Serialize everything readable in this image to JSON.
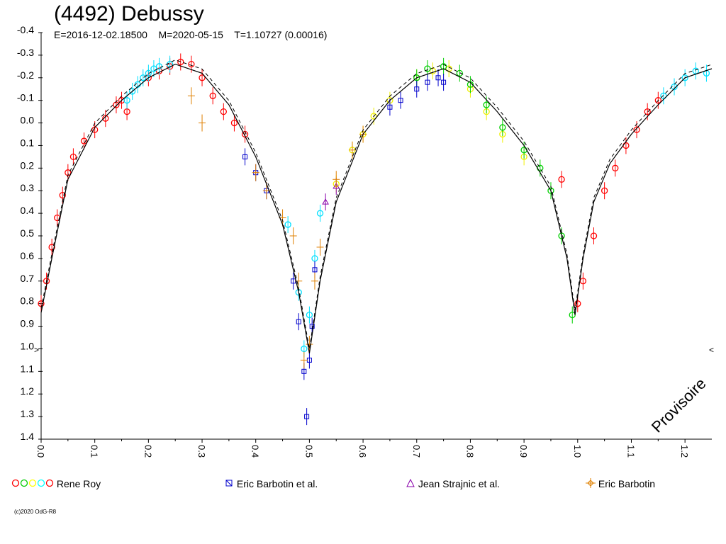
{
  "title": "(4492) Debussy",
  "subtitle": "E=2016-12-02.18500    M=2020-05-15    T=1.10727 (0.00016)",
  "watermark": "Provisoire",
  "copyright": "(c)2020 OdG-R8",
  "edge_markers": {
    "left": ">",
    "right": "<"
  },
  "legend": [
    {
      "label": "Rene Roy",
      "symbol": "multi",
      "colors": [
        "#ff0000",
        "#00cc00",
        "#ffff00",
        "#00ffff",
        "#ff0000"
      ]
    },
    {
      "label": "Eric Barbotin et al.",
      "symbol": "x-square",
      "color": "#0000cc"
    },
    {
      "label": "Jean Strajnic et al.",
      "symbol": "triangle",
      "color": "#8800aa"
    },
    {
      "label": "Eric Barbotin",
      "symbol": "cross-diamond",
      "color": "#e08000"
    }
  ],
  "chart_data": {
    "type": "scatter",
    "x_ticks": [
      "0.0",
      "0.1",
      "0.2",
      "0.3",
      "0.4",
      "0.5",
      "0.6",
      "0.7",
      "0.8",
      "0.9",
      "1.0",
      "1.1",
      "1.2"
    ],
    "y_ticks": [
      "-0.4",
      "-0.3",
      "-0.2",
      "-0.1",
      "0.0",
      "0.1",
      "0.2",
      "0.3",
      "0.4",
      "0.5",
      "0.6",
      "0.7",
      "0.8",
      "0.9",
      "1.0",
      "1.1",
      "1.2",
      "1.3",
      "1.4"
    ],
    "xlim": [
      0.0,
      1.25
    ],
    "ylim": [
      -0.4,
      1.4
    ],
    "y_inverted": true,
    "grid": false,
    "series": [
      {
        "name": "Rene Roy",
        "color": "#ff0000",
        "x": [
          0.0,
          0.01,
          0.02,
          0.03,
          0.04,
          0.05,
          0.06,
          0.08,
          0.1,
          0.12,
          0.14,
          0.15,
          0.16,
          0.2,
          0.22,
          0.24,
          0.26,
          0.28,
          0.3,
          0.32,
          0.34,
          0.36,
          0.38,
          0.97,
          1.0,
          1.01,
          1.03,
          1.05,
          1.07,
          1.09,
          1.11,
          1.13,
          1.15
        ],
        "y": [
          0.8,
          0.7,
          0.55,
          0.42,
          0.32,
          0.22,
          0.15,
          0.08,
          0.03,
          -0.02,
          -0.08,
          -0.1,
          -0.05,
          -0.2,
          -0.23,
          -0.25,
          -0.27,
          -0.26,
          -0.2,
          -0.12,
          -0.05,
          0.0,
          0.05,
          0.25,
          0.8,
          0.7,
          0.5,
          0.3,
          0.2,
          0.1,
          0.03,
          -0.05,
          -0.1
        ]
      },
      {
        "name": "Rene Roy (cyan)",
        "color": "#00e0ff",
        "x": [
          0.16,
          0.17,
          0.18,
          0.19,
          0.2,
          0.21,
          0.22,
          0.24,
          0.46,
          0.48,
          0.49,
          0.5,
          0.51,
          0.52,
          1.16,
          1.18,
          1.2,
          1.22,
          1.24
        ],
        "y": [
          -0.1,
          -0.14,
          -0.17,
          -0.2,
          -0.22,
          -0.24,
          -0.25,
          -0.26,
          0.45,
          0.75,
          1.0,
          0.85,
          0.6,
          0.4,
          -0.12,
          -0.16,
          -0.2,
          -0.23,
          -0.22
        ]
      },
      {
        "name": "Rene Roy (yellow)",
        "color": "#f0f000",
        "x": [
          0.55,
          0.58,
          0.6,
          0.62,
          0.65,
          0.7,
          0.73,
          0.76,
          0.8,
          0.83,
          0.86,
          0.9
        ],
        "y": [
          0.27,
          0.12,
          0.05,
          -0.03,
          -0.1,
          -0.2,
          -0.23,
          -0.24,
          -0.15,
          -0.05,
          0.05,
          0.15
        ]
      },
      {
        "name": "Rene Roy (green)",
        "color": "#00d000",
        "x": [
          0.7,
          0.72,
          0.75,
          0.78,
          0.8,
          0.83,
          0.86,
          0.9,
          0.93,
          0.95,
          0.97,
          0.99
        ],
        "y": [
          -0.2,
          -0.24,
          -0.25,
          -0.22,
          -0.17,
          -0.08,
          0.02,
          0.12,
          0.2,
          0.3,
          0.5,
          0.85
        ]
      },
      {
        "name": "Eric Barbotin et al.",
        "color": "#0000cc",
        "x": [
          0.38,
          0.4,
          0.42,
          0.47,
          0.48,
          0.49,
          0.495,
          0.5,
          0.505,
          0.51,
          0.65,
          0.67,
          0.7,
          0.72,
          0.74,
          0.75
        ],
        "y": [
          0.15,
          0.22,
          0.3,
          0.7,
          0.88,
          1.1,
          1.3,
          1.05,
          0.9,
          0.65,
          -0.07,
          -0.1,
          -0.15,
          -0.18,
          -0.2,
          -0.18
        ]
      },
      {
        "name": "Jean Strajnic et al.",
        "color": "#8800aa",
        "x": [
          0.53,
          0.55
        ],
        "y": [
          0.35,
          0.28
        ]
      },
      {
        "name": "Eric Barbotin",
        "color": "#e08000",
        "x": [
          0.28,
          0.3,
          0.4,
          0.42,
          0.45,
          0.47,
          0.48,
          0.49,
          0.5,
          0.51,
          0.52,
          0.55,
          0.58,
          0.6
        ],
        "y": [
          -0.12,
          0.0,
          0.22,
          0.3,
          0.42,
          0.5,
          0.7,
          1.05,
          0.98,
          0.7,
          0.55,
          0.25,
          0.12,
          0.05
        ]
      }
    ],
    "fit_curve": {
      "x": [
        0.0,
        0.02,
        0.05,
        0.1,
        0.15,
        0.2,
        0.25,
        0.3,
        0.35,
        0.4,
        0.45,
        0.48,
        0.5,
        0.52,
        0.55,
        0.6,
        0.65,
        0.7,
        0.75,
        0.8,
        0.85,
        0.9,
        0.95,
        0.98,
        0.995,
        1.01,
        1.03,
        1.06,
        1.1,
        1.15,
        1.2,
        1.25
      ],
      "y": [
        0.84,
        0.6,
        0.25,
        0.02,
        -0.1,
        -0.2,
        -0.26,
        -0.22,
        -0.08,
        0.15,
        0.45,
        0.75,
        1.02,
        0.7,
        0.35,
        0.05,
        -0.1,
        -0.2,
        -0.24,
        -0.18,
        -0.05,
        0.1,
        0.3,
        0.6,
        0.85,
        0.6,
        0.35,
        0.18,
        0.05,
        -0.08,
        -0.2,
        -0.24
      ]
    }
  }
}
